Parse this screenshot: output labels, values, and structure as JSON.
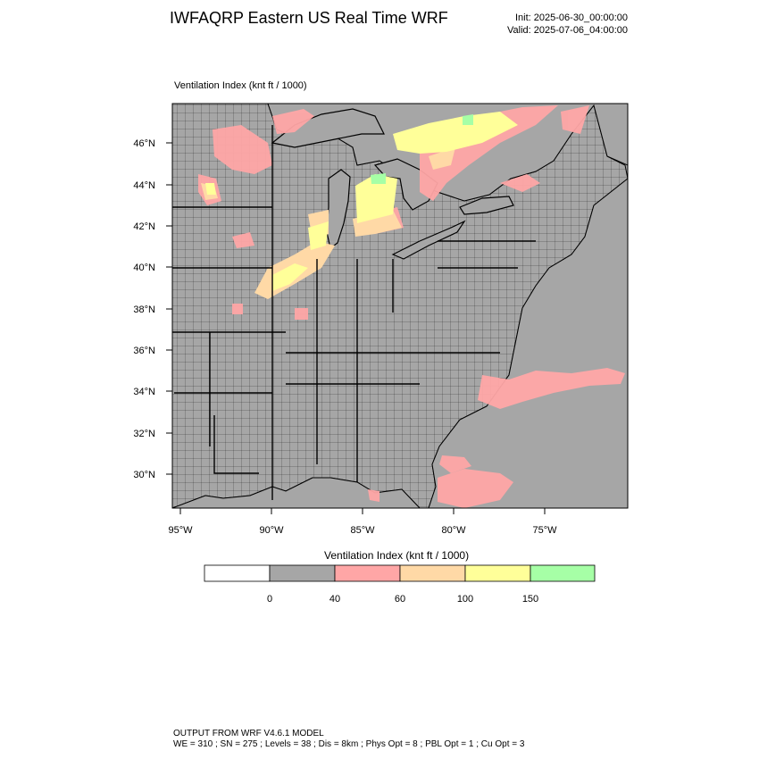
{
  "header": {
    "title": "IWFAQRP Eastern US Real Time WRF",
    "init": "Init: 2025-06-30_00:00:00",
    "valid": "Valid: 2025-07-06_04:00:00"
  },
  "map": {
    "field_label": "Ventilation Index   (knt ft / 1000)",
    "lat_labels": [
      "46°N",
      "44°N",
      "42°N",
      "40°N",
      "38°N",
      "36°N",
      "34°N",
      "32°N",
      "30°N"
    ],
    "lon_labels": [
      "95°W",
      "90°W",
      "85°W",
      "80°W",
      "75°W"
    ],
    "colors": {
      "background": "#a6a6a6",
      "land_lines": "#000000",
      "range_40_60": "#ffa6a6",
      "range_60_100": "#ffd9a6",
      "range_100_150": "#ffff99",
      "range_150_up": "#a6ffa6"
    }
  },
  "colorbar": {
    "title": "Ventilation Index  (knt ft / 1000)",
    "tick_labels": [
      "0",
      "40",
      "60",
      "100",
      "150"
    ],
    "swatches": [
      "#ffffff",
      "#a6a6a6",
      "#ffa6a6",
      "#ffd9a6",
      "#ffff99",
      "#a6ffa6"
    ]
  },
  "footer": {
    "line1": "OUTPUT FROM WRF V4.6.1 MODEL",
    "line2": "WE = 310 ; SN = 275 ; Levels = 38 ; Dis = 8km ; Phys Opt = 8 ; PBL Opt = 1 ; Cu Opt = 3"
  }
}
